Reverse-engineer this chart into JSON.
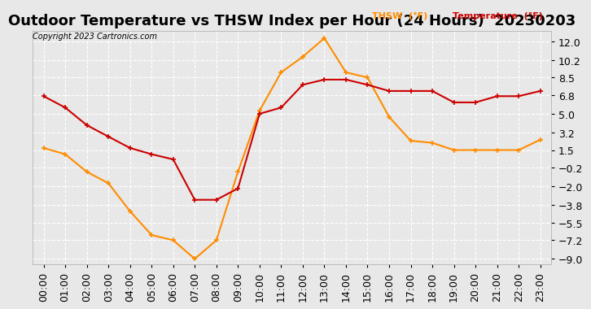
{
  "title": "Outdoor Temperature vs THSW Index per Hour (24 Hours)  20230203",
  "copyright": "Copyright 2023 Cartronics.com",
  "legend_thsw": "THSW  (°F)",
  "legend_temp": "Temperature  (°F)",
  "hours": [
    "00:00",
    "01:00",
    "02:00",
    "03:00",
    "04:00",
    "05:00",
    "06:00",
    "07:00",
    "08:00",
    "09:00",
    "10:00",
    "11:00",
    "12:00",
    "13:00",
    "14:00",
    "15:00",
    "16:00",
    "17:00",
    "18:00",
    "19:00",
    "20:00",
    "21:00",
    "22:00",
    "23:00"
  ],
  "temperature": [
    6.7,
    5.6,
    3.9,
    2.8,
    1.7,
    1.1,
    0.6,
    -3.3,
    -3.3,
    -2.2,
    5.0,
    5.6,
    7.8,
    8.3,
    8.3,
    7.8,
    7.2,
    7.2,
    7.2,
    6.1,
    6.1,
    6.7,
    6.7,
    7.2
  ],
  "thsw": [
    1.7,
    1.1,
    -0.6,
    -1.7,
    -4.4,
    -6.7,
    -7.2,
    -9.0,
    -7.2,
    -0.6,
    5.3,
    9.0,
    10.5,
    12.3,
    9.0,
    8.5,
    4.7,
    2.4,
    2.2,
    1.5,
    1.5,
    1.5,
    1.5,
    2.5
  ],
  "thsw_color": "#FF8C00",
  "temp_color": "#CC0000",
  "background_color": "#E8E8E8",
  "plot_bg_color": "#E8E8E8",
  "grid_color": "#FFFFFF",
  "yticks": [
    12.0,
    10.2,
    8.5,
    6.8,
    5.0,
    3.2,
    1.5,
    -0.2,
    -2.0,
    -3.8,
    -5.5,
    -7.2,
    -9.0
  ],
  "ylim": [
    -9.5,
    13.0
  ],
  "title_fontsize": 13,
  "axis_fontsize": 9
}
